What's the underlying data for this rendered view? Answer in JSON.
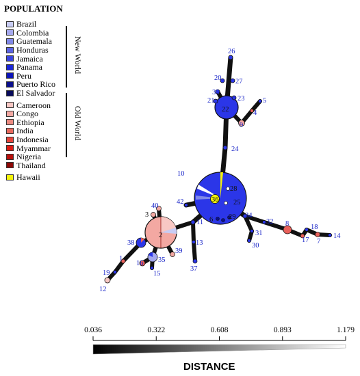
{
  "legend": {
    "title": "POPULATION",
    "groups": [
      {
        "name": "New World",
        "items": [
          {
            "label": "Brazil",
            "color": "#c8ccf4"
          },
          {
            "label": "Colombia",
            "color": "#a4a8ee"
          },
          {
            "label": "Guatemala",
            "color": "#8088e8"
          },
          {
            "label": "Honduras",
            "color": "#5c64e2"
          },
          {
            "label": "Jamaica",
            "color": "#3a44dd"
          },
          {
            "label": "Panama",
            "color": "#1a26d8"
          },
          {
            "label": "Peru",
            "color": "#0d14b8"
          },
          {
            "label": "Puerto Rico",
            "color": "#0a0f8c"
          },
          {
            "label": "El Salvador",
            "color": "#080b5c"
          }
        ]
      },
      {
        "name": "Old World",
        "items": [
          {
            "label": "Cameroon",
            "color": "#f8c8c4"
          },
          {
            "label": "Congo",
            "color": "#f3a8a2"
          },
          {
            "label": "Ethiopia",
            "color": "#ec8a80"
          },
          {
            "label": "India",
            "color": "#e86a5e"
          },
          {
            "label": "Indonesia",
            "color": "#e4443a"
          },
          {
            "label": "Myammar",
            "color": "#dc1c14"
          },
          {
            "label": "Nigeria",
            "color": "#b8100c"
          },
          {
            "label": "Thailand",
            "color": "#8c0806"
          }
        ]
      },
      {
        "name": "",
        "items": [
          {
            "label": "Hawaii",
            "color": "#f4f40a"
          }
        ]
      }
    ]
  },
  "network": {
    "node_labels": [
      "10",
      "26",
      "20",
      "27",
      "33",
      "23",
      "21",
      "22",
      "5",
      "4",
      "9",
      "24",
      "28",
      "36",
      "25",
      "6",
      "29",
      "42",
      "40",
      "3",
      "11",
      "34",
      "32",
      "8",
      "18",
      "17",
      "7",
      "14",
      "2",
      "38",
      "39",
      "31",
      "30",
      "13",
      "1",
      "16",
      "35",
      "15",
      "19",
      "12",
      "37"
    ]
  },
  "scale": {
    "title": "DISTANCE",
    "ticks": [
      "0.036",
      "0.322",
      "0.608",
      "0.893",
      "1.179"
    ],
    "range": [
      0.036,
      1.179
    ]
  },
  "colors": {
    "node_blue": "#2b36e8",
    "node_red": "#e8605a",
    "node_pink": "#f3a8a2",
    "label_blue": "#1a26c8",
    "edge": "#111111"
  }
}
